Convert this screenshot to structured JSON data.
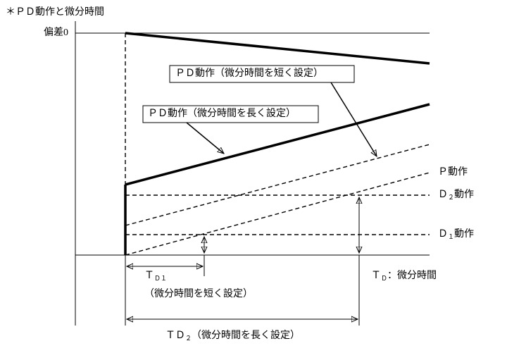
{
  "title": "＊ＰＤ動作と微分時間",
  "axis": {
    "label": "偏差",
    "zero": "0"
  },
  "callouts": {
    "short": "ＰＤ動作（微分時間を短く設定）",
    "long": "ＰＤ動作（微分時間を長く設定）"
  },
  "lines": {
    "p": "Ｐ動作",
    "d2": {
      "main": "Ｄ",
      "sub": "２",
      "tail": "動作"
    },
    "d1": {
      "main": "Ｄ",
      "sub": "１",
      "tail": "動作"
    }
  },
  "dims": {
    "td1": {
      "main": "Ｔ",
      "sub": "Ｄ１"
    },
    "td1_note": "（微分時間を短く設定）",
    "td": {
      "main": "Ｔ",
      "sub": "Ｄ",
      "tail": "：微分時間"
    },
    "td2": {
      "main": "ＴＤ",
      "sub": "２",
      "tail": "（微分時間を長く設定）"
    }
  }
}
